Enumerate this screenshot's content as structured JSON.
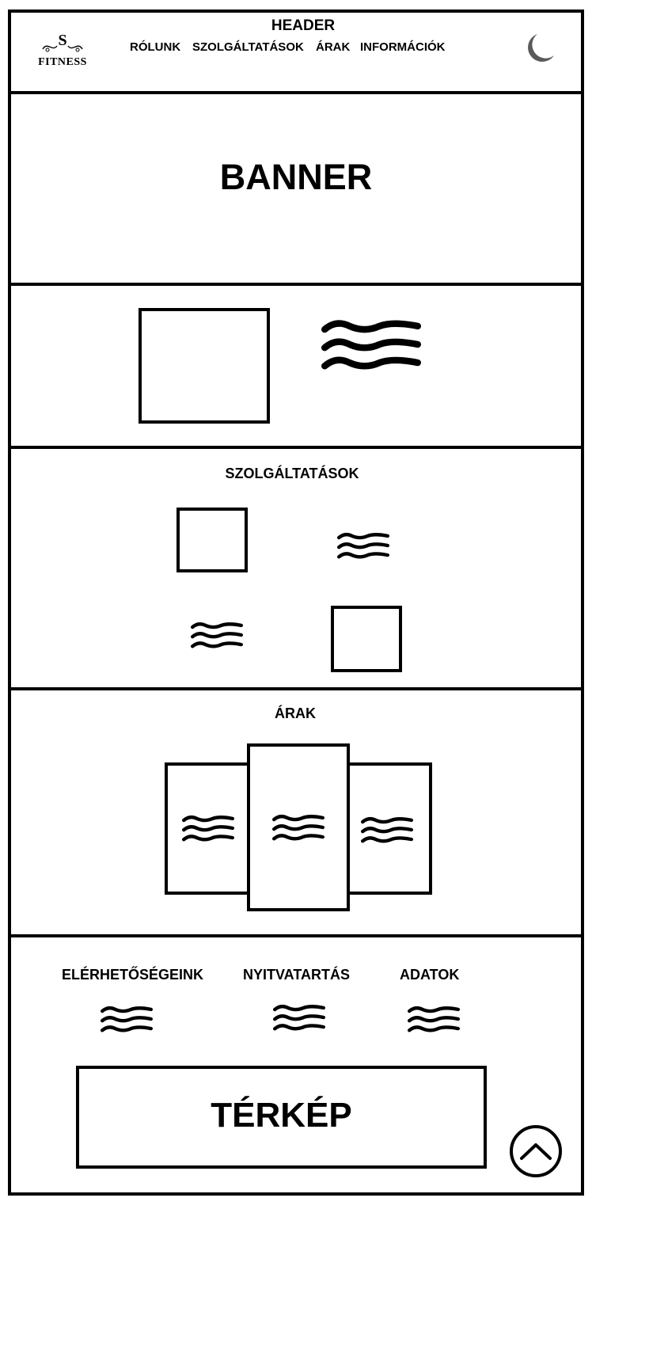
{
  "header": {
    "title": "HEADER",
    "logo": {
      "monogram": "S",
      "name": "FITNESS"
    },
    "nav": [
      "RÓLUNK",
      "SZOLGÁLTATÁSOK",
      "ÁRAK",
      "INFORMÁCIÓK"
    ],
    "theme_icon": "moon-icon"
  },
  "banner": {
    "label": "BANNER"
  },
  "services": {
    "title": "SZOLGÁLTATÁSOK"
  },
  "prices": {
    "title": "ÁRAK"
  },
  "footer": {
    "columns": [
      "ELÉRHETŐSÉGEINK",
      "NYITVATARTÁS",
      "ADATOK"
    ],
    "map_label": "TÉRKÉP",
    "scroll_top_icon": "chevron-up-icon"
  },
  "colors": {
    "ink": "#000000",
    "moon": "#5a5a5a",
    "background": "#ffffff"
  }
}
